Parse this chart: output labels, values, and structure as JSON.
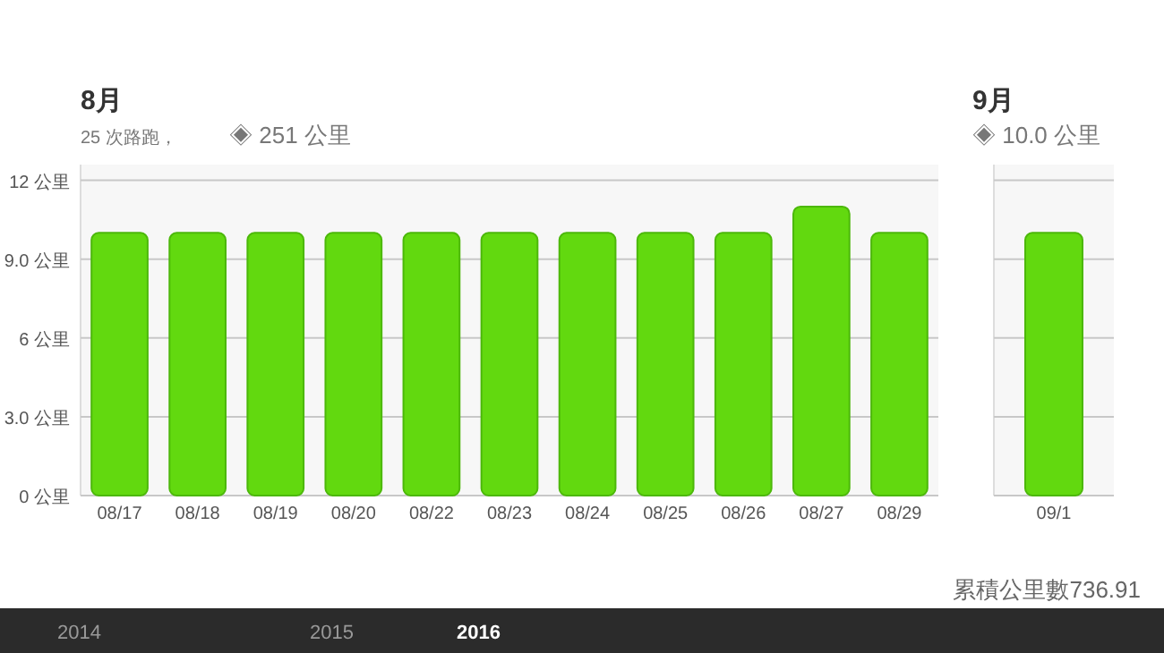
{
  "chart_data": [
    {
      "type": "bar",
      "title": "8月",
      "subtitle": "25 次路跑，",
      "annotations": [
        "◈ 251 公里"
      ],
      "categories": [
        "08/17",
        "08/18",
        "08/19",
        "08/20",
        "08/22",
        "08/23",
        "08/24",
        "08/25",
        "08/26",
        "08/27",
        "08/29"
      ],
      "values": [
        10.0,
        10.0,
        10.0,
        10.0,
        10.0,
        10.0,
        10.0,
        10.0,
        10.0,
        11.0,
        10.0
      ],
      "color": "#62d90f",
      "ylim": [
        0,
        12.6
      ],
      "yticks": [
        {
          "value": 0,
          "label": "0 公里"
        },
        {
          "value": 3,
          "label": "3.0 公里"
        },
        {
          "value": 6,
          "label": "6 公里"
        },
        {
          "value": 9,
          "label": "9.0 公里"
        },
        {
          "value": 12,
          "label": "12 公里"
        }
      ],
      "grid": "y"
    },
    {
      "type": "bar",
      "title": "9月",
      "subtitle": "◈ 10.0 公里",
      "annotations": [
        "累積公里數736.91",
        "2014",
        "2015",
        "2016"
      ],
      "categories": [
        "09/1"
      ],
      "values": [
        10.0
      ],
      "color": "#62d90f",
      "ylim": [
        0,
        12.6
      ],
      "yticks": [
        {
          "value": 0,
          "label": null
        },
        {
          "value": 3,
          "label": null
        },
        {
          "value": 6,
          "label": null
        },
        {
          "value": 9,
          "label": null
        },
        {
          "value": 12,
          "label": null
        }
      ],
      "grid": "y",
      "tick_labels": "x"
    }
  ]
}
